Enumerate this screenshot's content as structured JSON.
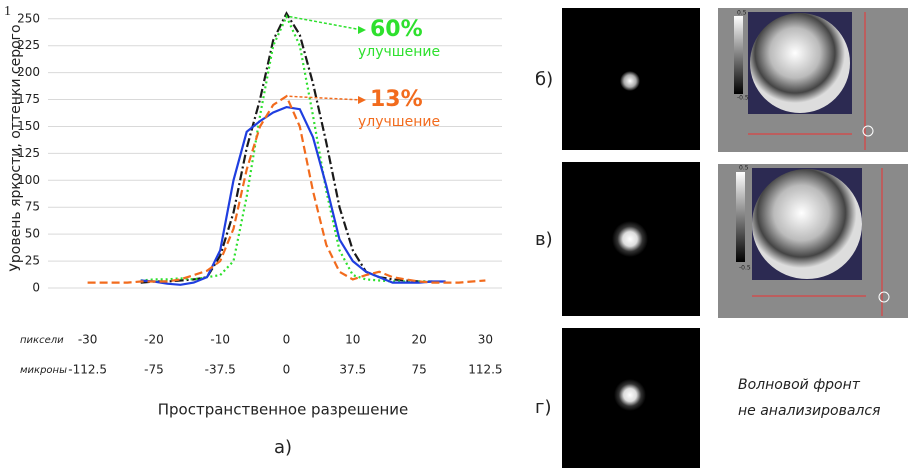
{
  "figure_number": "1",
  "chart_data": {
    "type": "line",
    "y_label": "Уровень яркости, оттенки серого",
    "x_label": "Пространственное разрешение",
    "x_row_label": "пиксели",
    "x2_row_label": "микроны",
    "x": [
      -30,
      -28,
      -26,
      -24,
      -22,
      -20,
      -18,
      -16,
      -14,
      -12,
      -10,
      -8,
      -6,
      -4,
      -2,
      0,
      2,
      4,
      6,
      8,
      10,
      12,
      14,
      16,
      18,
      20,
      22,
      24,
      26,
      28,
      30
    ],
    "xlim": [
      -31,
      31
    ],
    "xticks": [
      -30,
      -20,
      -10,
      0,
      10,
      20,
      30
    ],
    "x2lim": [
      -116.25,
      116.25
    ],
    "x2ticks": [
      -112.5,
      -75,
      -37.5,
      0,
      37.5,
      75,
      112.5
    ],
    "ylim": [
      0,
      260
    ],
    "yticks": [
      0,
      25,
      50,
      75,
      100,
      125,
      150,
      175,
      200,
      225,
      250
    ],
    "grid": true,
    "series": [
      {
        "color": "#1a1a1a",
        "style": "dashdot",
        "values": [
          null,
          null,
          null,
          null,
          5,
          6,
          6,
          7,
          8,
          10,
          30,
          70,
          130,
          175,
          230,
          255,
          235,
          190,
          135,
          75,
          35,
          15,
          10,
          8,
          7,
          6,
          6,
          null,
          null,
          null,
          null
        ]
      },
      {
        "color": "#2ee02e",
        "style": "dotted",
        "values": [
          null,
          null,
          null,
          null,
          7,
          8,
          8,
          9,
          8,
          10,
          12,
          25,
          85,
          160,
          225,
          252,
          225,
          160,
          90,
          35,
          12,
          8,
          7,
          6,
          6,
          6,
          6,
          null,
          null,
          null,
          null
        ]
      },
      {
        "color": "#1f3ee0",
        "style": "solid",
        "values": [
          null,
          null,
          null,
          null,
          7,
          6,
          4,
          3,
          5,
          10,
          35,
          100,
          145,
          155,
          163,
          168,
          166,
          140,
          95,
          45,
          25,
          15,
          10,
          5,
          5,
          5,
          6,
          6,
          null,
          null,
          null
        ]
      },
      {
        "color": "#f26b1d",
        "style": "dashed",
        "values": [
          5,
          5,
          5,
          5,
          6,
          6,
          6,
          8,
          12,
          16,
          25,
          55,
          110,
          150,
          170,
          178,
          150,
          90,
          40,
          15,
          8,
          12,
          15,
          10,
          8,
          6,
          5,
          5,
          5,
          6,
          7
        ]
      }
    ],
    "annotations": [
      {
        "text": "60%",
        "subtext": "улучшение",
        "color": "#2ee02e",
        "series": 1
      },
      {
        "text": "13%",
        "subtext": "улучшение",
        "color": "#f26b1d",
        "series": 3
      }
    ],
    "panel_label": "а)"
  },
  "panels": [
    {
      "label": "б)",
      "colorbar": [
        "0.5",
        "-0.5"
      ]
    },
    {
      "label": "в)",
      "colorbar": [
        "0.5",
        "-0.5"
      ]
    },
    {
      "label": "г)",
      "note": [
        "Волновой фронт",
        "не анализировался"
      ]
    }
  ]
}
